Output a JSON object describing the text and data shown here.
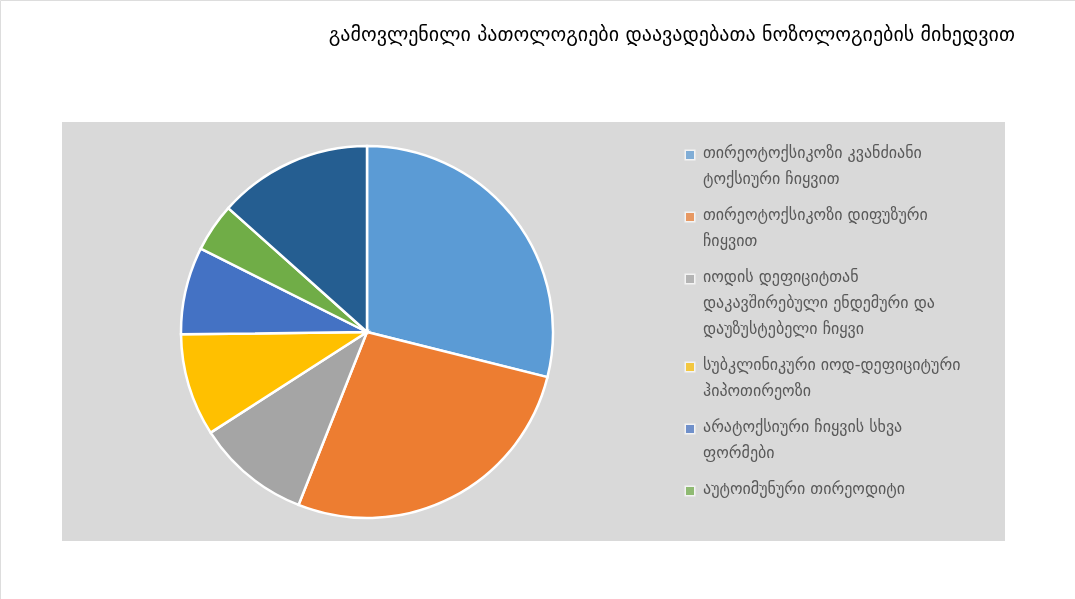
{
  "chart_data": {
    "type": "pie",
    "title": "გამოვლენილი პათოლოგიები დაავადებათა ნოზოლოგიების მიხედვით",
    "categories": [
      "თირეოტოქსიკოზი კვანძიანი ტოქსიური ჩიყვით",
      "თირეოტოქსიკოზი დიფუზური ჩიყვით",
      "იოდის დეფიციტთან დაკავშირებული ენდემური და დაუზუსტებელი ჩიყვი",
      "სუბკლინიკური იოდ-დეფიციტური ჰიპოთირეოზი",
      "არატოქსიური ჩიყვის სხვა ფორმები",
      "აუტოიმუნური თირეოდიტი",
      null
    ],
    "values": [
      28.9,
      27.1,
      9.9,
      8.9,
      7.6,
      4.2,
      13.4
    ],
    "colors": [
      "#5b9bd5",
      "#ed7d31",
      "#a5a5a5",
      "#ffc000",
      "#4472c4",
      "#70ad47",
      "#255e91"
    ],
    "legend": "right"
  }
}
